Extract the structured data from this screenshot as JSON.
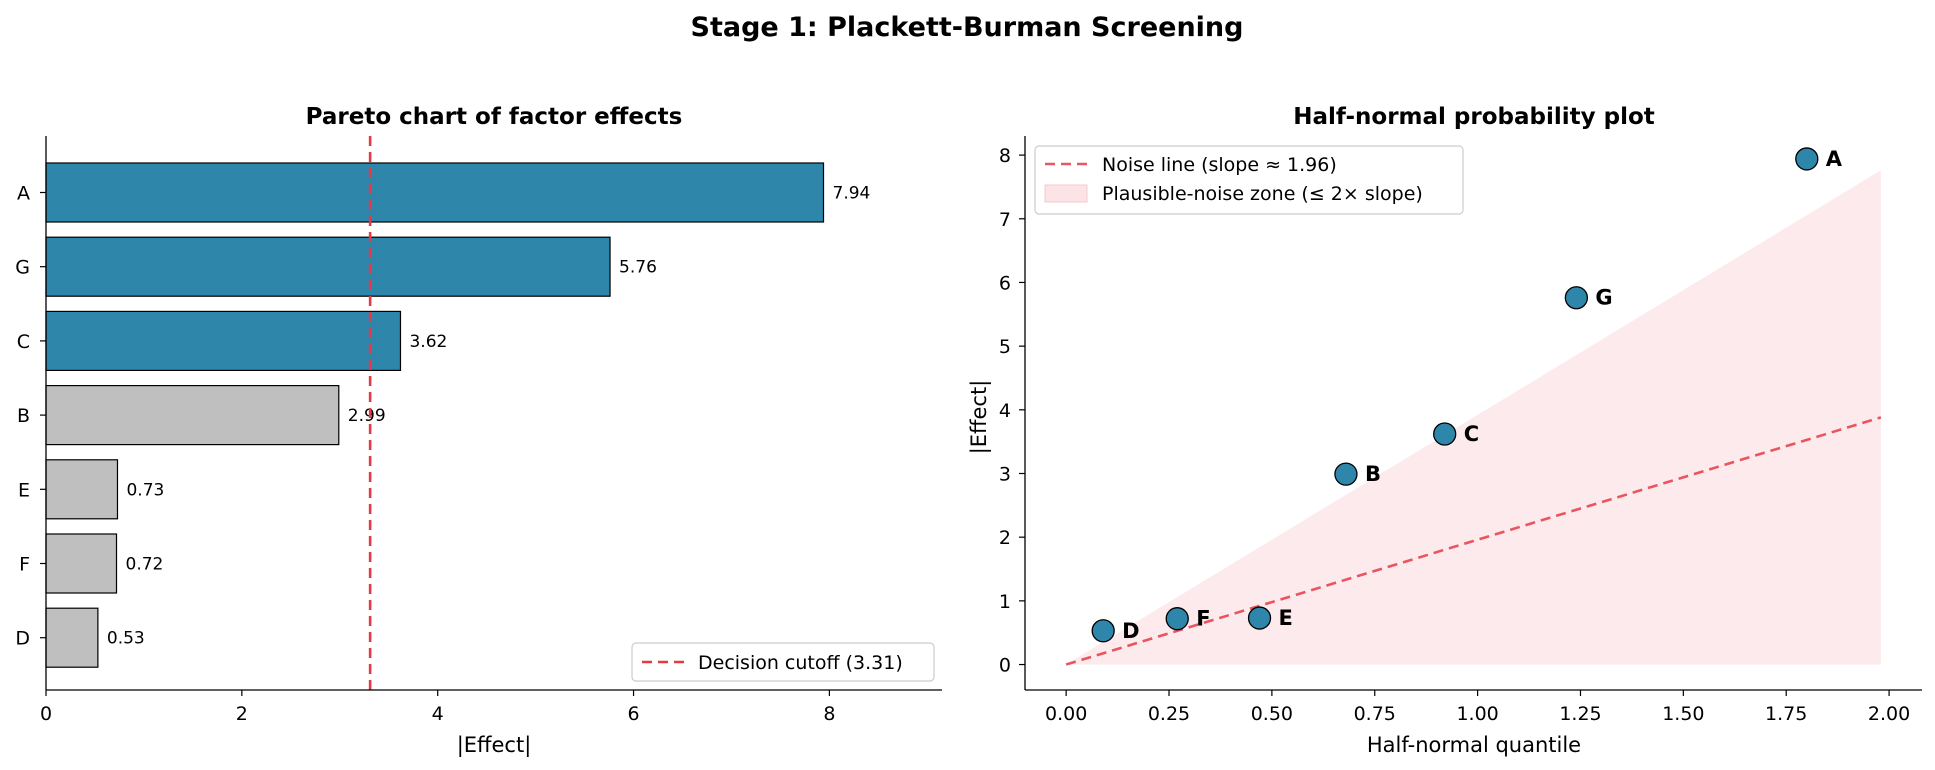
{
  "figure": {
    "title": "Stage 1: Plackett-Burman Screening"
  },
  "chart_data": [
    {
      "type": "bar",
      "orientation": "horizontal",
      "title": "Pareto chart of factor effects",
      "xlabel": "|Effect|",
      "ylabel": "",
      "categories": [
        "A",
        "G",
        "C",
        "B",
        "E",
        "F",
        "D"
      ],
      "values": [
        7.94,
        5.76,
        3.62,
        2.99,
        0.73,
        0.72,
        0.53
      ],
      "value_labels": [
        "7.94",
        "5.76",
        "3.62",
        "2.99",
        "0.73",
        "0.72",
        "0.53"
      ],
      "active": [
        true,
        true,
        true,
        false,
        false,
        false,
        false
      ],
      "xlim": [
        0,
        9.15
      ],
      "xticks": [
        0,
        2,
        4,
        6,
        8
      ],
      "xtick_labels": [
        "0",
        "2",
        "4",
        "6",
        "8"
      ],
      "cutoff": {
        "value": 3.31,
        "label": "Decision cutoff (3.31)"
      },
      "legend": {
        "location": "lower-right",
        "entries": [
          "Decision cutoff (3.31)"
        ]
      },
      "grid": false,
      "colors": {
        "active": "#2e86ab",
        "inactive": "#bfbfbf",
        "cutoff": "#e63946",
        "edge": "#000000"
      }
    },
    {
      "type": "scatter",
      "title": "Half-normal probability plot",
      "xlabel": "Half-normal quantile",
      "ylabel": "|Effect|",
      "points": [
        {
          "label": "D",
          "x": 0.09,
          "y": 0.53
        },
        {
          "label": "F",
          "x": 0.27,
          "y": 0.72
        },
        {
          "label": "E",
          "x": 0.47,
          "y": 0.73
        },
        {
          "label": "B",
          "x": 0.68,
          "y": 2.99
        },
        {
          "label": "C",
          "x": 0.92,
          "y": 3.62
        },
        {
          "label": "G",
          "x": 1.24,
          "y": 5.76
        },
        {
          "label": "A",
          "x": 1.8,
          "y": 7.94
        }
      ],
      "noise_line": {
        "slope": 1.96,
        "x_range": [
          0,
          1.98
        ],
        "label": "Noise line (slope ≈ 1.96)"
      },
      "noise_zone": {
        "slope": 3.92,
        "x_range": [
          0,
          1.98
        ],
        "label": "Plausible-noise zone (≤ 2× slope)"
      },
      "xlim": [
        -0.1,
        2.08
      ],
      "ylim": [
        -0.4,
        8.3
      ],
      "xticks": [
        0,
        0.25,
        0.5,
        0.75,
        1.0,
        1.25,
        1.5,
        1.75,
        2.0
      ],
      "xtick_labels": [
        "0.00",
        "0.25",
        "0.50",
        "0.75",
        "1.00",
        "1.25",
        "1.50",
        "1.75",
        "2.00"
      ],
      "yticks": [
        0,
        1,
        2,
        3,
        4,
        5,
        6,
        7,
        8
      ],
      "ytick_labels": [
        "0",
        "1",
        "2",
        "3",
        "4",
        "5",
        "6",
        "7",
        "8"
      ],
      "legend": {
        "location": "upper-left",
        "entries": [
          "Noise line (slope ≈ 1.96)",
          "Plausible-noise zone (≤ 2× slope)"
        ]
      },
      "grid": false,
      "colors": {
        "points": "#2e86ab",
        "line": "#e63946",
        "zone": "#fbe3e6",
        "edge": "#000000"
      }
    }
  ]
}
